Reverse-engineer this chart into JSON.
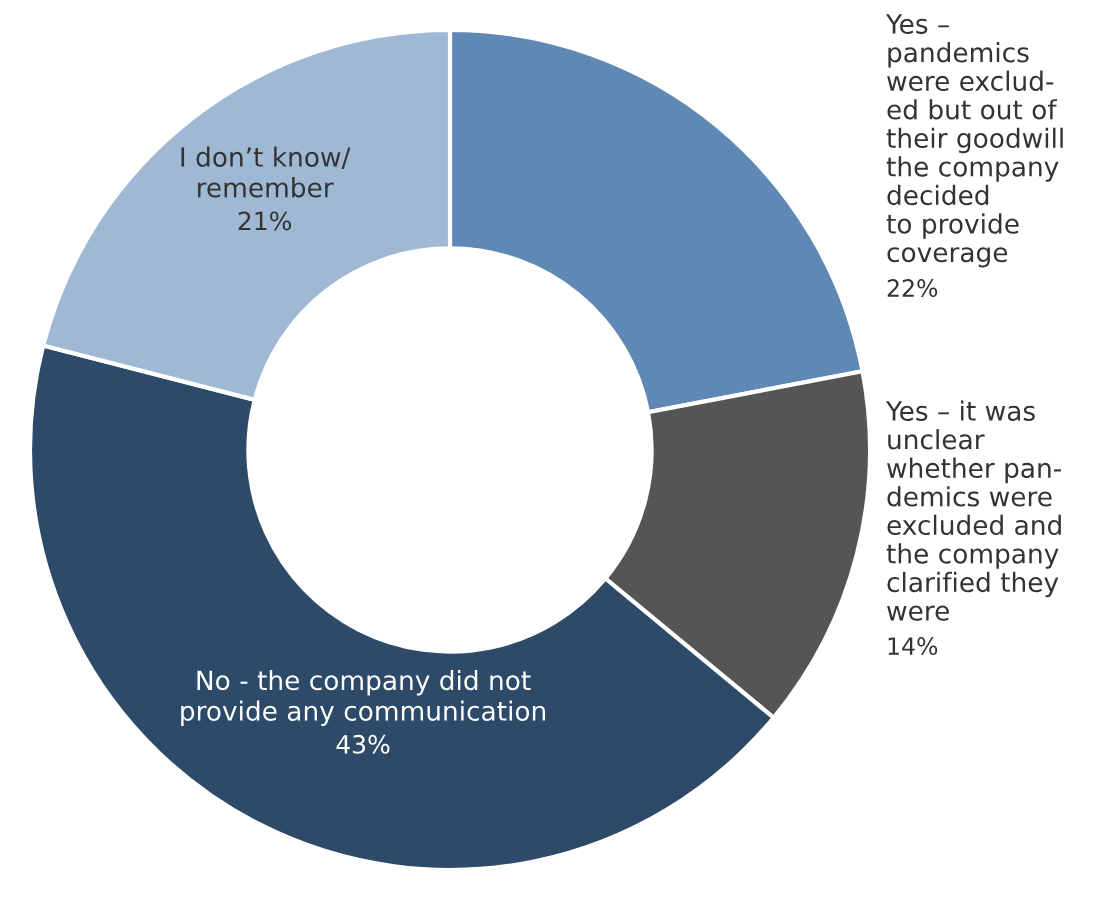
{
  "chart_data": {
    "type": "donut",
    "categories": [
      "Yes –\npandemics\nwere exclud-\ned but out of\ntheir goodwill\nthe company\ndecided\nto provide\ncoverage",
      "Yes – it was\nunclear\nwhether pan-\ndemics were\nexcluded and\nthe company\nclarified they\nwere",
      "No - the company did not\nprovide any communication",
      "I don’t know/\nremember"
    ],
    "values": [
      22,
      14,
      43,
      21
    ],
    "value_labels": [
      "22%",
      "14%",
      "43%",
      "21%"
    ],
    "colors": [
      "#5f88b5",
      "#555555",
      "#2e4a69",
      "#9fb8d4"
    ],
    "legend": false
  }
}
